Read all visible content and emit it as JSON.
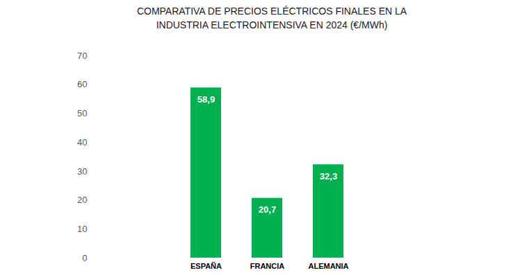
{
  "chart_data": {
    "type": "bar",
    "title": "COMPARATIVA DE PRECIOS ELÉCTRICOS FINALES EN LA\nINDUSTRIA ELECTROINTENSIVA EN 2024 (€/MWh)",
    "categories": [
      "ESPAÑA",
      "FRANCIA",
      "ALEMANIA"
    ],
    "values": [
      58.9,
      20.7,
      32.3
    ],
    "value_labels": [
      "58,9",
      "20,7",
      "32,3"
    ],
    "color": "#00b050",
    "ylim": [
      0,
      70
    ],
    "yticks": [
      0,
      10,
      20,
      30,
      40,
      50,
      60,
      70
    ],
    "grid": false,
    "data_labels": true
  }
}
